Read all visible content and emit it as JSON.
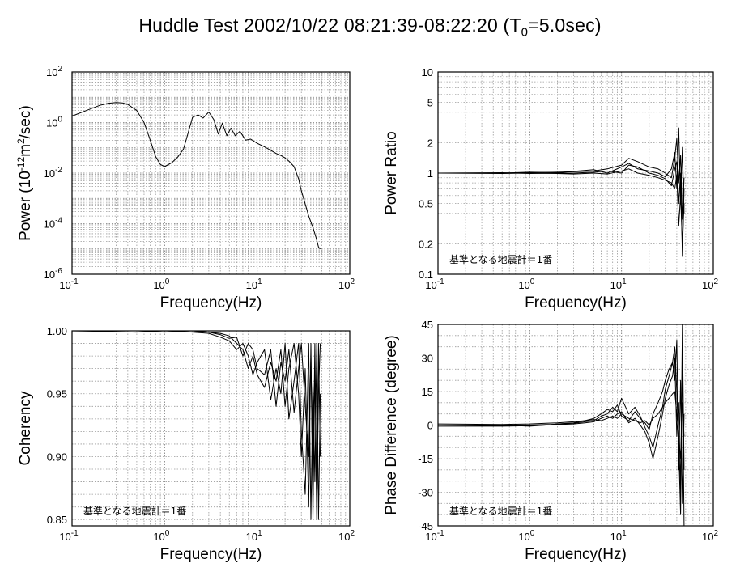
{
  "title": {
    "prefix": "Huddle Test  2002/10/22  08:21:39-08:22:20 (T",
    "subscript": "0",
    "suffix": "=5.0sec)"
  },
  "chart_data": [
    {
      "id": "power",
      "type": "line",
      "title": "",
      "xlabel": "Frequency(Hz)",
      "ylabel": "Power (10^-12 m^2/sec)",
      "xscale": "log",
      "yscale": "log",
      "xlim": [
        0.1,
        100
      ],
      "ylim": [
        1e-06,
        100
      ],
      "grid": true,
      "series": [
        {
          "x": [
            0.1,
            0.15,
            0.2,
            0.25,
            0.3,
            0.35,
            0.4,
            0.5,
            0.6,
            0.7,
            0.8,
            0.9,
            1.0,
            1.2,
            1.4,
            1.6,
            1.8,
            2.0,
            2.3,
            2.6,
            3.0,
            3.4,
            3.8,
            4.2,
            4.7,
            5.2,
            5.8,
            6.5,
            7.5,
            8.5,
            10,
            12,
            14,
            16,
            18,
            20,
            22,
            25,
            28,
            30,
            33,
            36,
            40,
            43,
            46,
            48
          ],
          "y": [
            1.8,
            3.2,
            4.8,
            5.8,
            6.2,
            6.0,
            5.2,
            3.0,
            1.0,
            0.2,
            0.045,
            0.022,
            0.018,
            0.026,
            0.045,
            0.09,
            0.4,
            1.6,
            2.0,
            1.5,
            2.6,
            1.3,
            0.35,
            0.95,
            0.3,
            0.6,
            0.3,
            0.45,
            0.2,
            0.22,
            0.15,
            0.11,
            0.08,
            0.06,
            0.05,
            0.04,
            0.03,
            0.018,
            0.006,
            0.002,
            0.0006,
            0.0002,
            7e-05,
            3e-05,
            1.2e-05,
            1e-05
          ]
        }
      ]
    },
    {
      "id": "ratio",
      "type": "line",
      "title": "",
      "xlabel": "Frequency(Hz)",
      "ylabel": "Power Ratio",
      "xscale": "log",
      "yscale": "log",
      "xlim": [
        0.1,
        100
      ],
      "ylim": [
        0.1,
        10
      ],
      "grid": true,
      "annotation": "基準となる地震計＝1番",
      "series": [
        {
          "x": [
            0.1,
            0.5,
            1,
            2,
            3,
            5,
            7,
            10,
            12,
            15,
            20,
            25,
            30,
            35,
            38,
            40,
            42,
            44,
            46,
            48
          ],
          "y": [
            1.0,
            1.0,
            1.01,
            1.02,
            1.03,
            1.05,
            1.1,
            1.2,
            1.4,
            1.3,
            1.15,
            1.1,
            1.0,
            0.9,
            1.4,
            2.2,
            0.8,
            1.5,
            0.35,
            0.9
          ]
        },
        {
          "x": [
            0.1,
            0.5,
            1,
            2,
            3,
            5,
            7,
            10,
            12,
            15,
            20,
            25,
            30,
            35,
            38,
            40,
            42,
            44,
            46,
            48
          ],
          "y": [
            1.0,
            0.99,
            1.0,
            0.99,
            0.98,
            1.0,
            0.98,
            1.05,
            1.1,
            1.0,
            0.95,
            0.9,
            0.85,
            0.8,
            0.7,
            0.95,
            0.3,
            0.6,
            0.2,
            0.5
          ]
        },
        {
          "x": [
            0.1,
            0.5,
            1,
            2,
            3,
            5,
            7,
            10,
            12,
            15,
            20,
            25,
            30,
            35,
            38,
            40,
            42,
            44,
            46,
            48
          ],
          "y": [
            1.0,
            1.0,
            1.02,
            1.01,
            1.04,
            1.08,
            1.0,
            1.15,
            1.25,
            1.1,
            1.05,
            1.0,
            0.92,
            1.1,
            1.6,
            0.7,
            2.8,
            0.5,
            1.8,
            0.4
          ]
        },
        {
          "x": [
            0.1,
            0.5,
            1,
            2,
            3,
            5,
            7,
            10,
            12,
            15,
            20,
            25,
            30,
            35,
            38,
            40,
            42,
            44,
            46,
            48
          ],
          "y": [
            1.0,
            1.01,
            0.99,
            1.0,
            1.0,
            1.02,
            1.05,
            1.0,
            1.2,
            1.15,
            1.0,
            0.95,
            0.88,
            0.75,
            1.1,
            1.3,
            0.5,
            1.0,
            0.15,
            0.7
          ]
        }
      ]
    },
    {
      "id": "coherency",
      "type": "line",
      "title": "",
      "xlabel": "Frequency(Hz)",
      "ylabel": "Coherency",
      "xscale": "log",
      "yscale": "linear",
      "xlim": [
        0.1,
        100
      ],
      "ylim": [
        0.845,
        1.0
      ],
      "grid": true,
      "annotation": "基準となる地震計＝1番",
      "series": [
        {
          "x": [
            0.1,
            0.5,
            1,
            2,
            3,
            4,
            5,
            6,
            7,
            8,
            9,
            10,
            12,
            14,
            16,
            18,
            20,
            22,
            25,
            28,
            30,
            33,
            36,
            38,
            40,
            42,
            44,
            46,
            48
          ],
          "y": [
            1.0,
            1.0,
            1.0,
            1.0,
            0.999,
            0.998,
            0.996,
            0.99,
            0.985,
            0.97,
            0.98,
            0.965,
            0.955,
            0.975,
            0.96,
            0.985,
            0.94,
            0.97,
            0.99,
            0.95,
            0.9,
            0.97,
            0.86,
            0.99,
            0.85,
            0.97,
            0.85,
            0.99,
            0.9
          ]
        },
        {
          "x": [
            0.1,
            0.5,
            1,
            2,
            3,
            4,
            5,
            6,
            7,
            8,
            9,
            10,
            12,
            14,
            16,
            18,
            20,
            22,
            25,
            28,
            30,
            33,
            36,
            38,
            40,
            42,
            44,
            46,
            48
          ],
          "y": [
            1.0,
            0.999,
            1.0,
            0.999,
            0.998,
            0.995,
            0.992,
            0.985,
            0.99,
            0.98,
            0.965,
            0.975,
            0.985,
            0.945,
            0.97,
            0.95,
            0.99,
            0.93,
            0.96,
            0.99,
            0.92,
            0.87,
            0.99,
            0.85,
            0.96,
            0.88,
            0.99,
            0.85,
            0.95
          ]
        },
        {
          "x": [
            0.1,
            0.5,
            1,
            2,
            3,
            4,
            5,
            6,
            7,
            8,
            9,
            10,
            12,
            14,
            16,
            18,
            20,
            22,
            25,
            28,
            30,
            33,
            36,
            38,
            40,
            42,
            44,
            46,
            48
          ],
          "y": [
            1.0,
            1.0,
            0.999,
            1.0,
            0.999,
            0.997,
            0.994,
            0.995,
            0.98,
            0.99,
            0.985,
            0.97,
            0.965,
            0.985,
            0.94,
            0.975,
            0.96,
            0.985,
            0.935,
            0.97,
            0.99,
            0.94,
            0.9,
            0.98,
            0.87,
            0.99,
            0.86,
            0.95,
            0.99
          ]
        }
      ]
    },
    {
      "id": "phase",
      "type": "line",
      "title": "",
      "xlabel": "Frequency(Hz)",
      "ylabel": "Phase Difference (degree)",
      "xscale": "log",
      "yscale": "linear",
      "xlim": [
        0.1,
        100
      ],
      "ylim": [
        -45,
        45
      ],
      "grid": true,
      "annotation": "基準となる地震計＝1番",
      "series": [
        {
          "x": [
            0.1,
            0.5,
            1,
            1.5,
            2,
            3,
            4,
            5,
            6,
            7,
            8,
            9,
            10,
            12,
            14,
            16,
            18,
            20,
            22,
            25,
            28,
            30,
            33,
            36,
            38,
            40,
            42,
            44,
            46,
            48
          ],
          "y": [
            0,
            0,
            -0.5,
            0,
            0.5,
            1,
            2,
            3,
            5,
            7,
            6,
            9,
            4,
            2,
            6,
            3,
            1,
            -2,
            5,
            10,
            15,
            20,
            25,
            28,
            35,
            15,
            -10,
            -40,
            30,
            -45
          ]
        },
        {
          "x": [
            0.1,
            0.5,
            1,
            1.5,
            2,
            3,
            4,
            5,
            6,
            7,
            8,
            9,
            10,
            12,
            14,
            16,
            18,
            20,
            22,
            25,
            28,
            30,
            33,
            36,
            38,
            40,
            42,
            44,
            46,
            48
          ],
          "y": [
            0,
            -0.3,
            0,
            0.3,
            0.2,
            0.5,
            1,
            1.5,
            3,
            4,
            3,
            5,
            6,
            1,
            3,
            0,
            -3,
            -8,
            -15,
            -5,
            5,
            12,
            18,
            22,
            30,
            -5,
            10,
            -30,
            45,
            -20
          ]
        },
        {
          "x": [
            0.1,
            0.5,
            1,
            1.5,
            2,
            3,
            4,
            5,
            6,
            7,
            8,
            9,
            10,
            12,
            14,
            16,
            18,
            20,
            22,
            25,
            28,
            30,
            33,
            36,
            38,
            40,
            42,
            44,
            46,
            48
          ],
          "y": [
            0.5,
            0.3,
            0.5,
            0.8,
            1,
            1.5,
            2,
            2.5,
            2,
            3,
            4,
            3,
            5,
            3,
            2,
            1,
            2,
            0,
            3,
            5,
            8,
            10,
            12,
            14,
            15,
            5,
            -5,
            -15,
            10,
            -5
          ]
        },
        {
          "x": [
            0.1,
            0.5,
            1,
            1.5,
            2,
            3,
            4,
            5,
            6,
            7,
            8,
            9,
            10,
            12,
            14,
            16,
            18,
            20,
            22,
            25,
            28,
            30,
            33,
            36,
            38,
            40,
            42,
            44,
            46,
            48
          ],
          "y": [
            -0.5,
            -0.5,
            -0.3,
            0,
            0.5,
            0.8,
            1.5,
            2,
            4,
            5,
            8,
            6,
            12,
            5,
            8,
            4,
            -1,
            -5,
            -10,
            0,
            8,
            16,
            22,
            28,
            20,
            38,
            -20,
            20,
            -35,
            5
          ]
        }
      ]
    }
  ]
}
